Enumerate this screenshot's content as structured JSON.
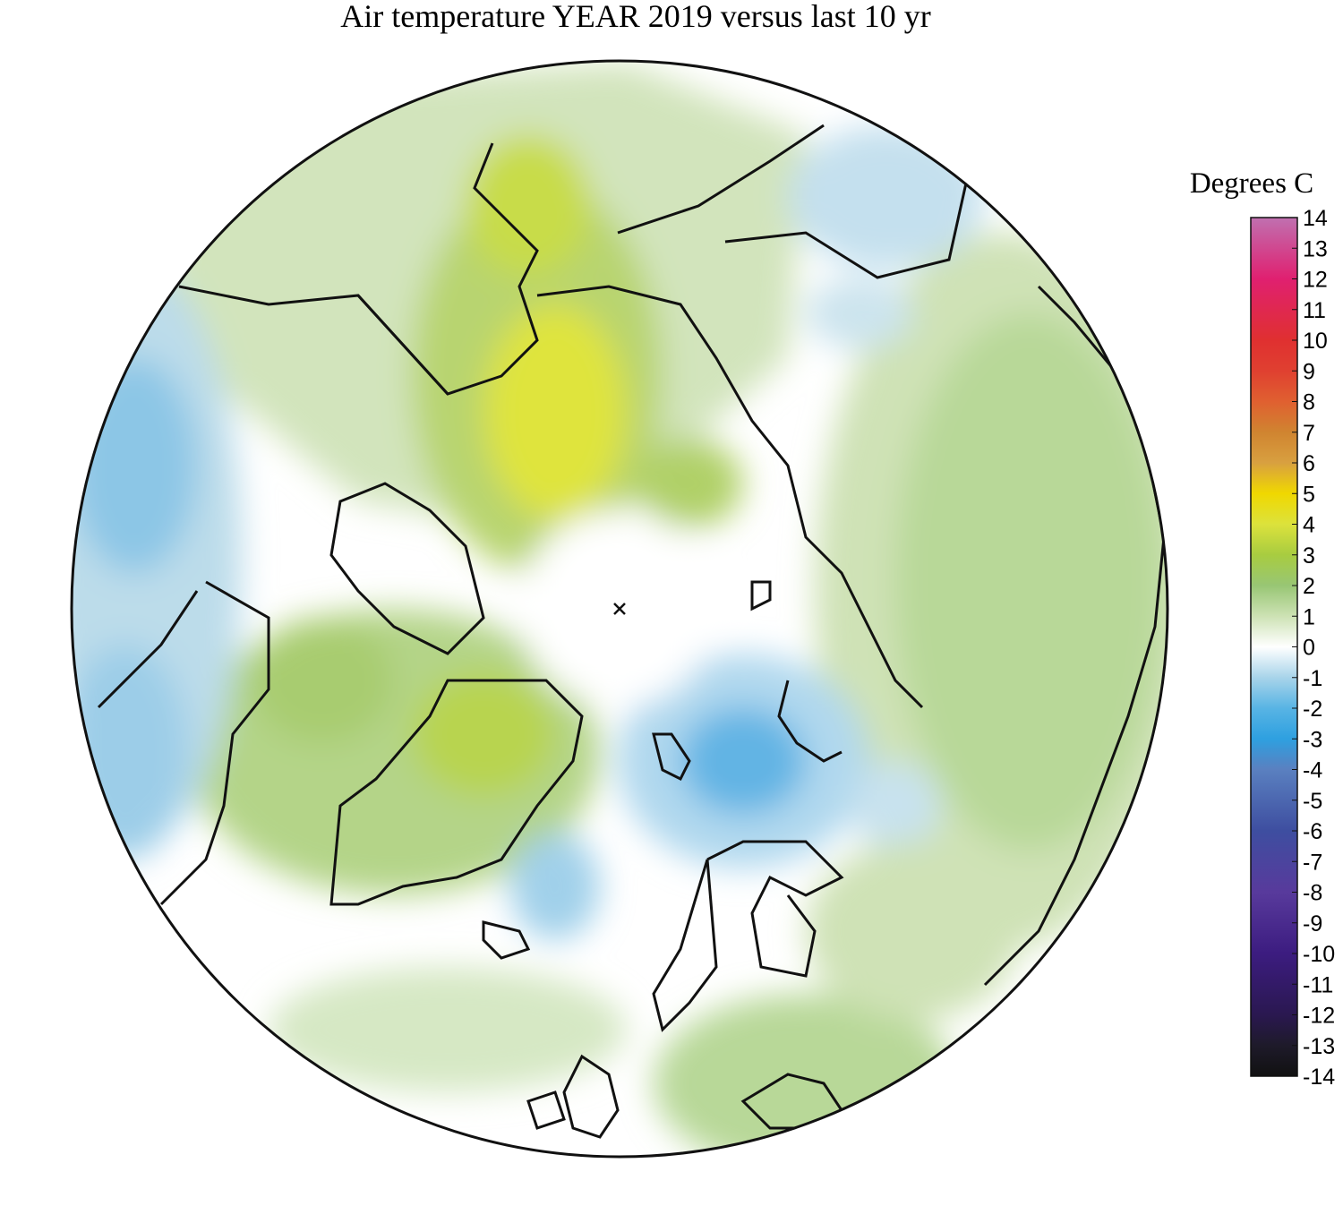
{
  "title": "Air temperature YEAR 2019 versus last 10 yr",
  "colorbar": {
    "label": "Degrees C",
    "range": [
      -14,
      14
    ],
    "ticks": [
      14,
      13,
      12,
      11,
      10,
      9,
      8,
      7,
      6,
      5,
      4,
      3,
      2,
      1,
      0,
      -1,
      -2,
      -3,
      -4,
      -5,
      -6,
      -7,
      -8,
      -9,
      -10,
      -11,
      -12,
      -13,
      -14
    ],
    "stops": [
      {
        "value": -14,
        "color": "#111111"
      },
      {
        "value": -13,
        "color": "#1e1a2a"
      },
      {
        "value": -12,
        "color": "#2a1850"
      },
      {
        "value": -10,
        "color": "#3c1c80"
      },
      {
        "value": -8,
        "color": "#583a9c"
      },
      {
        "value": -6,
        "color": "#3e4ea0"
      },
      {
        "value": -4,
        "color": "#5a80c0"
      },
      {
        "value": -3,
        "color": "#2ea0e0"
      },
      {
        "value": -2,
        "color": "#58b4e4"
      },
      {
        "value": -1,
        "color": "#a8d4ea"
      },
      {
        "value": 0,
        "color": "#ffffff"
      },
      {
        "value": 1,
        "color": "#cde2b4"
      },
      {
        "value": 2,
        "color": "#98c674"
      },
      {
        "value": 3,
        "color": "#a8cc40"
      },
      {
        "value": 4,
        "color": "#dce23c"
      },
      {
        "value": 5,
        "color": "#f0d800"
      },
      {
        "value": 6,
        "color": "#d8a040"
      },
      {
        "value": 7,
        "color": "#d08430"
      },
      {
        "value": 8,
        "color": "#e06030"
      },
      {
        "value": 9,
        "color": "#e04030"
      },
      {
        "value": 10,
        "color": "#e03030"
      },
      {
        "value": 12,
        "color": "#e02070"
      },
      {
        "value": 14,
        "color": "#c070b0"
      }
    ]
  }
}
